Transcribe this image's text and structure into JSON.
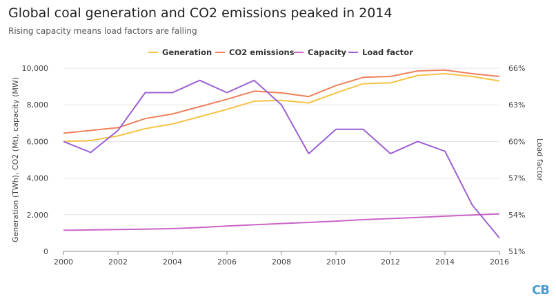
{
  "header": {
    "title": "Global coal generation and CO2 emissions peaked in 2014",
    "subtitle": "Rising capacity means load factors are falling"
  },
  "logo": {
    "text": "CB",
    "color": "#4a9cd6"
  },
  "chart_data": {
    "type": "line",
    "x": [
      2000,
      2001,
      2002,
      2003,
      2004,
      2005,
      2006,
      2007,
      2008,
      2009,
      2010,
      2011,
      2012,
      2013,
      2014,
      2015,
      2016
    ],
    "xticks": [
      "2000",
      "2002",
      "2004",
      "2006",
      "2008",
      "2010",
      "2012",
      "2014",
      "2016"
    ],
    "ylabel": "Generation (TWh), CO2 (Mt), capacity (MW)",
    "y2label": "Load factor",
    "ylim": [
      0,
      10000
    ],
    "y2lim": [
      51,
      66
    ],
    "yticks": [
      "0",
      "2,000",
      "4,000",
      "6,000",
      "8,000",
      "10,000"
    ],
    "y2ticks": [
      "51%",
      "54%",
      "57%",
      "60%",
      "63%",
      "66%"
    ],
    "legend_position": "top",
    "grid": true,
    "series": [
      {
        "name": "Generation",
        "color": "#f5c242",
        "axis": "left",
        "values": [
          6000,
          6050,
          6300,
          6700,
          6950,
          7350,
          7750,
          8200,
          8250,
          8100,
          8650,
          9150,
          9200,
          9600,
          9700,
          9550,
          9300
        ]
      },
      {
        "name": "CO2 emissions",
        "color": "#f07f5a",
        "axis": "left",
        "values": [
          6450,
          6600,
          6750,
          7250,
          7500,
          7900,
          8300,
          8750,
          8650,
          8450,
          9050,
          9500,
          9550,
          9850,
          9900,
          9700,
          9550
        ]
      },
      {
        "name": "Capacity",
        "color": "#c964c6",
        "axis": "left",
        "values": [
          1150,
          1170,
          1190,
          1210,
          1240,
          1300,
          1380,
          1450,
          1520,
          1580,
          1650,
          1730,
          1790,
          1850,
          1920,
          1980,
          2050
        ]
      },
      {
        "name": "Load factor",
        "color": "#9c5fd4",
        "axis": "right",
        "values": [
          60,
          59.1,
          60.9,
          64,
          64,
          65,
          64,
          65,
          63,
          59,
          61,
          61,
          59,
          60,
          59.2,
          54.8,
          52.1
        ]
      }
    ]
  }
}
